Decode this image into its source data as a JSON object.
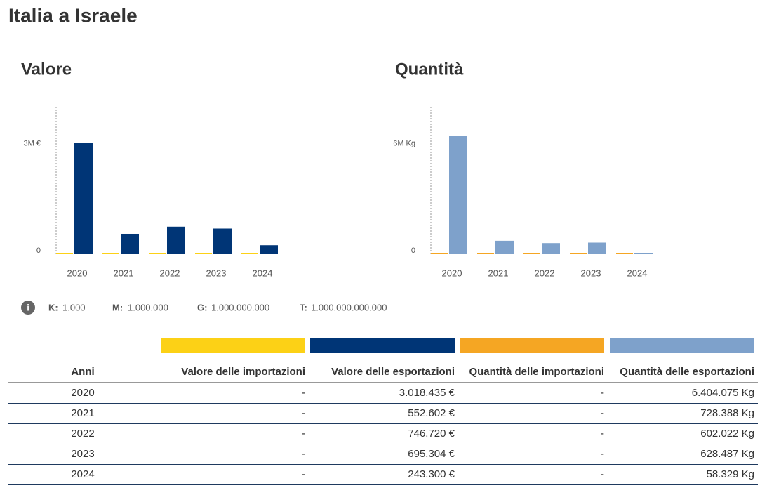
{
  "title": "Italia a Israele",
  "chart_data": [
    {
      "type": "bar",
      "title": "Valore",
      "categories": [
        "2020",
        "2021",
        "2022",
        "2023",
        "2024"
      ],
      "series": [
        {
          "name": "Valore delle importazioni",
          "color": "#fcd116",
          "values": [
            0,
            0,
            0,
            0,
            0
          ],
          "value_labels": [
            "-",
            "-",
            "-",
            "-",
            "-"
          ]
        },
        {
          "name": "Valore delle esportazioni",
          "color": "#003576",
          "values": [
            3018435,
            552602,
            746720,
            695304,
            243300
          ],
          "value_labels": [
            "3.018.435 €",
            "552.602 €",
            "746.720 €",
            "695.304 €",
            "243.300 €"
          ]
        }
      ],
      "ylim": [
        0,
        4000000
      ],
      "yticks": [
        0,
        {
          "value": 3000000,
          "label": "3M €"
        }
      ]
    },
    {
      "type": "bar",
      "title": "Quantità",
      "categories": [
        "2020",
        "2021",
        "2022",
        "2023",
        "2024"
      ],
      "series": [
        {
          "name": "Quantità delle importazioni",
          "color": "#f5a623",
          "values": [
            0,
            0,
            0,
            0,
            0
          ],
          "value_labels": [
            "-",
            "-",
            "-",
            "-",
            "-"
          ]
        },
        {
          "name": "Quantità delle esportazioni",
          "color": "#7ea1cb",
          "values": [
            6404075,
            728388,
            602022,
            628487,
            58329
          ],
          "value_labels": [
            "6.404.075 Kg",
            "728.388 Kg",
            "602.022 Kg",
            "628.487 Kg",
            "58.329 Kg"
          ]
        }
      ],
      "ylim": [
        0,
        8000000
      ],
      "yticks": [
        0,
        {
          "value": 6000000,
          "label": "6M Kg"
        }
      ]
    }
  ],
  "units": [
    {
      "key": "K:",
      "value": "1.000"
    },
    {
      "key": "M:",
      "value": "1.000.000"
    },
    {
      "key": "G:",
      "value": "1.000.000.000"
    },
    {
      "key": "T:",
      "value": "1.000.000.000.000"
    }
  ],
  "table": {
    "year_header": "Anni"
  }
}
